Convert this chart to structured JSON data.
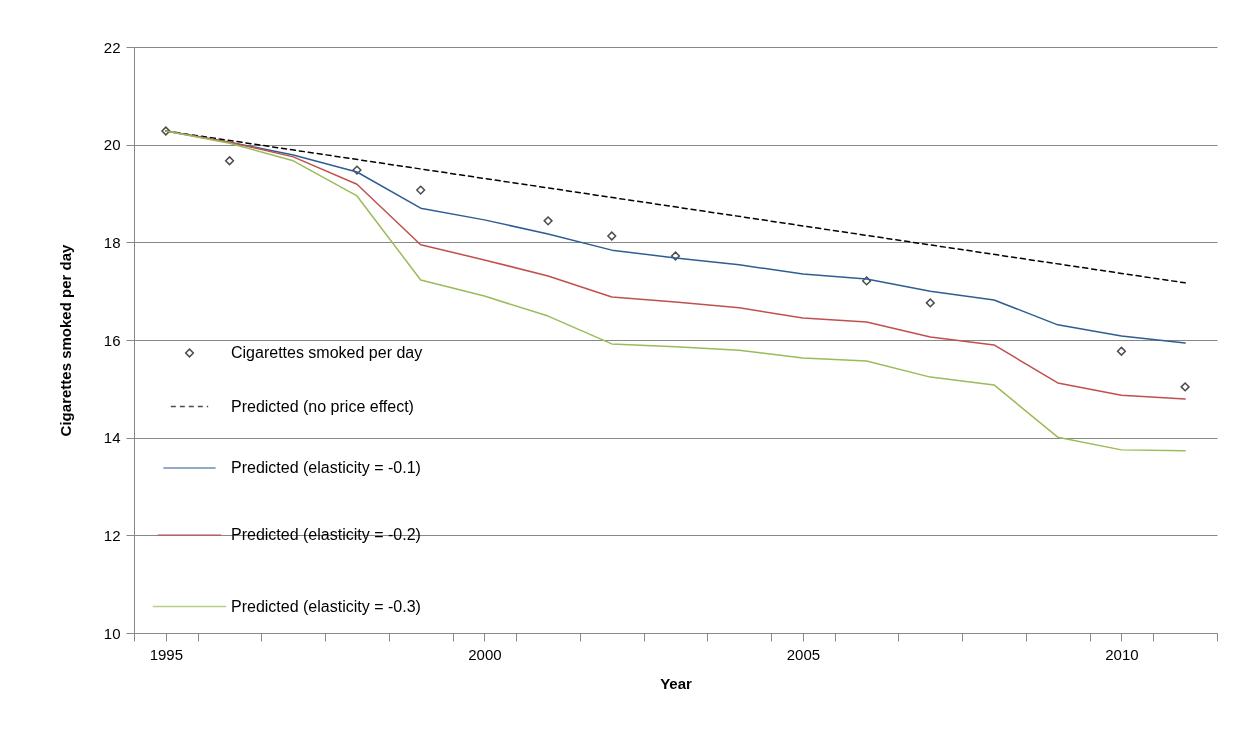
{
  "chart_data": {
    "type": "line",
    "xlabel": "Year",
    "ylabel": "Cigarettes smoked per day",
    "xlim": [
      1994.5,
      2011.5
    ],
    "xticks": [
      {
        "value": 1994.5,
        "label": null
      },
      1995,
      {
        "value": 1995.5,
        "label": null
      },
      {
        "value": 1996.5,
        "label": null
      },
      {
        "value": 1997.5,
        "label": null
      },
      {
        "value": 1998.5,
        "label": null
      },
      {
        "value": 1999.5,
        "label": null
      },
      2000,
      {
        "value": 2000.5,
        "label": null
      },
      {
        "value": 2001.5,
        "label": null
      },
      {
        "value": 2002.5,
        "label": null
      },
      {
        "value": 2003.5,
        "label": null
      },
      {
        "value": 2004.5,
        "label": null
      },
      2005,
      {
        "value": 2005.5,
        "label": null
      },
      {
        "value": 2006.5,
        "label": null
      },
      {
        "value": 2007.5,
        "label": null
      },
      {
        "value": 2008.5,
        "label": null
      },
      {
        "value": 2009.5,
        "label": null
      },
      2010,
      {
        "value": 2010.5,
        "label": null
      },
      {
        "value": 2011.5,
        "label": null
      }
    ],
    "ylim": [
      10,
      22
    ],
    "yticks": [
      10,
      12,
      14,
      16,
      18,
      20,
      22
    ],
    "grid": "y",
    "legend": "bottom left",
    "x": [
      1995,
      1996,
      1997,
      1998,
      1999,
      2000,
      2001,
      2002,
      2003,
      2004,
      2005,
      2006,
      2007,
      2008,
      2009,
      2010,
      2011
    ],
    "series": [
      {
        "name": "Cigarettes smoked per day",
        "type": "scatter",
        "marker": "diamond",
        "color": "#000000",
        "values": [
          20.28,
          19.67,
          null,
          19.48,
          19.07,
          null,
          18.44,
          18.13,
          17.72,
          null,
          null,
          17.21,
          16.76,
          null,
          null,
          15.77,
          15.04
        ]
      },
      {
        "name": "Predicted (no price effect)",
        "line_style": "dashed",
        "marker": "none",
        "color": "#000000",
        "x": [
          1995,
          2011
        ],
        "values": [
          20.28,
          17.17
        ]
      },
      {
        "name": "Predicted (elasticity = -0.1)",
        "line_style": "solid",
        "marker": "none",
        "color": "#2f5d92",
        "values": [
          20.28,
          20.05,
          19.79,
          19.44,
          18.7,
          18.46,
          18.17,
          17.84,
          17.68,
          17.54,
          17.35,
          17.25,
          17.0,
          16.82,
          16.31,
          16.08,
          15.94
        ]
      },
      {
        "name": "Predicted (elasticity = -0.2)",
        "line_style": "solid",
        "marker": "none",
        "color": "#c0504d",
        "values": [
          20.28,
          20.05,
          19.75,
          19.19,
          17.95,
          17.64,
          17.31,
          16.88,
          16.78,
          16.66,
          16.45,
          16.37,
          16.06,
          15.9,
          15.12,
          14.87,
          14.79
        ]
      },
      {
        "name": "Predicted (elasticity = -0.3)",
        "line_style": "solid",
        "marker": "none",
        "color": "#9bbb59",
        "values": [
          20.28,
          20.03,
          19.67,
          18.95,
          17.23,
          16.9,
          16.49,
          15.92,
          15.86,
          15.79,
          15.63,
          15.57,
          15.24,
          15.08,
          14.01,
          13.75,
          13.73
        ]
      }
    ]
  }
}
